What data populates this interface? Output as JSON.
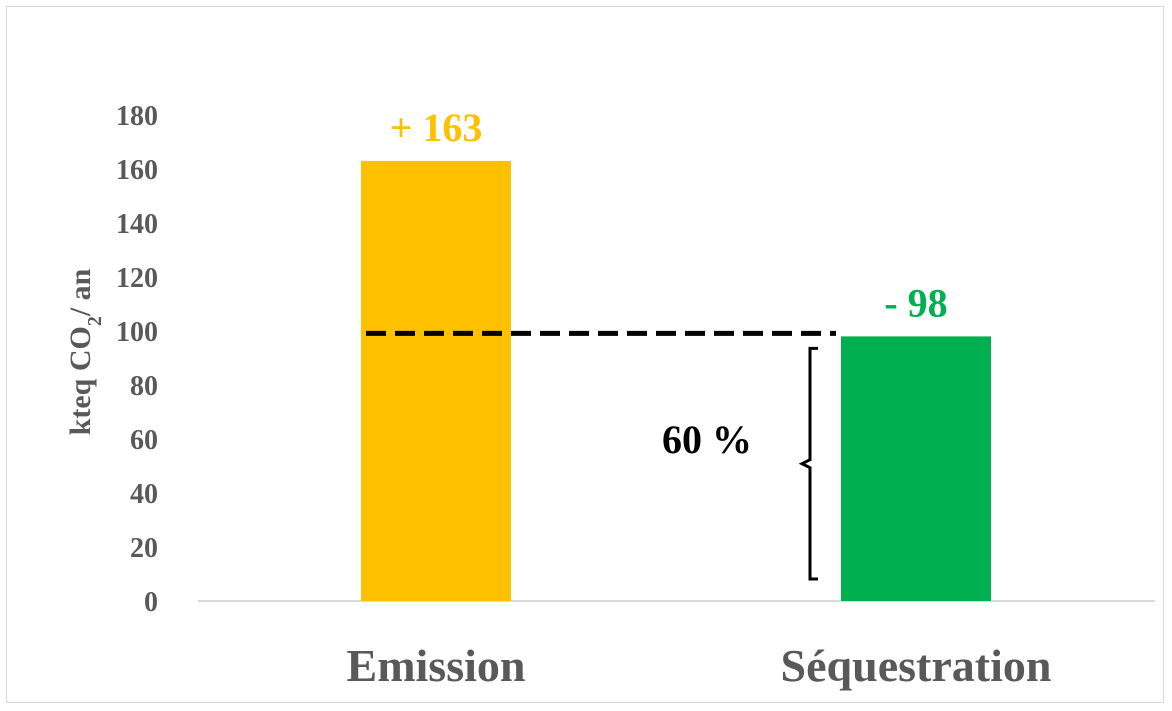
{
  "chart_data": {
    "type": "bar",
    "categories": [
      "Emission",
      "Séquestration"
    ],
    "values": [
      163,
      98
    ],
    "data_labels": [
      "+ 163",
      "- 98"
    ],
    "colors": [
      "#FFC000",
      "#00B050"
    ],
    "ylabel": {
      "main": "kteq CO",
      "sub": "2",
      "rest": "/ an"
    },
    "ylim": [
      0,
      180
    ],
    "yticks": [
      0,
      20,
      40,
      60,
      80,
      100,
      120,
      140,
      160,
      180
    ],
    "grid": false,
    "reference_line": {
      "value": 98,
      "style": "dashed",
      "color": "#000000"
    },
    "annotation": {
      "text": "60 %",
      "from": 0,
      "to": 98
    }
  }
}
